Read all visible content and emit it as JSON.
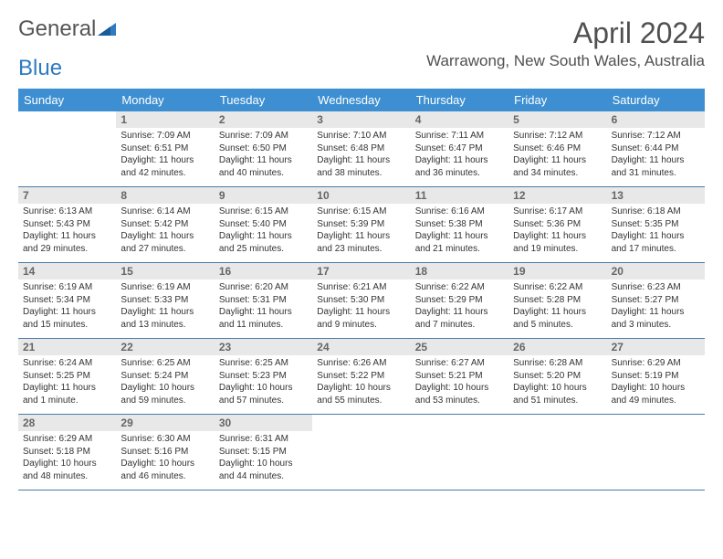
{
  "logo": {
    "text_gray": "General",
    "text_blue": "Blue"
  },
  "title": "April 2024",
  "location": "Warrawong, New South Wales, Australia",
  "colors": {
    "header_bg": "#3d8fd1",
    "header_text": "#ffffff",
    "daynum_bg": "#e8e8e8",
    "daynum_text": "#666666",
    "body_text": "#333333",
    "week_border": "#4a7ba8",
    "title_color": "#505050"
  },
  "day_headers": [
    "Sunday",
    "Monday",
    "Tuesday",
    "Wednesday",
    "Thursday",
    "Friday",
    "Saturday"
  ],
  "weeks": [
    [
      null,
      {
        "d": "1",
        "sr": "7:09 AM",
        "ss": "6:51 PM",
        "dl": "11 hours and 42 minutes."
      },
      {
        "d": "2",
        "sr": "7:09 AM",
        "ss": "6:50 PM",
        "dl": "11 hours and 40 minutes."
      },
      {
        "d": "3",
        "sr": "7:10 AM",
        "ss": "6:48 PM",
        "dl": "11 hours and 38 minutes."
      },
      {
        "d": "4",
        "sr": "7:11 AM",
        "ss": "6:47 PM",
        "dl": "11 hours and 36 minutes."
      },
      {
        "d": "5",
        "sr": "7:12 AM",
        "ss": "6:46 PM",
        "dl": "11 hours and 34 minutes."
      },
      {
        "d": "6",
        "sr": "7:12 AM",
        "ss": "6:44 PM",
        "dl": "11 hours and 31 minutes."
      }
    ],
    [
      {
        "d": "7",
        "sr": "6:13 AM",
        "ss": "5:43 PM",
        "dl": "11 hours and 29 minutes."
      },
      {
        "d": "8",
        "sr": "6:14 AM",
        "ss": "5:42 PM",
        "dl": "11 hours and 27 minutes."
      },
      {
        "d": "9",
        "sr": "6:15 AM",
        "ss": "5:40 PM",
        "dl": "11 hours and 25 minutes."
      },
      {
        "d": "10",
        "sr": "6:15 AM",
        "ss": "5:39 PM",
        "dl": "11 hours and 23 minutes."
      },
      {
        "d": "11",
        "sr": "6:16 AM",
        "ss": "5:38 PM",
        "dl": "11 hours and 21 minutes."
      },
      {
        "d": "12",
        "sr": "6:17 AM",
        "ss": "5:36 PM",
        "dl": "11 hours and 19 minutes."
      },
      {
        "d": "13",
        "sr": "6:18 AM",
        "ss": "5:35 PM",
        "dl": "11 hours and 17 minutes."
      }
    ],
    [
      {
        "d": "14",
        "sr": "6:19 AM",
        "ss": "5:34 PM",
        "dl": "11 hours and 15 minutes."
      },
      {
        "d": "15",
        "sr": "6:19 AM",
        "ss": "5:33 PM",
        "dl": "11 hours and 13 minutes."
      },
      {
        "d": "16",
        "sr": "6:20 AM",
        "ss": "5:31 PM",
        "dl": "11 hours and 11 minutes."
      },
      {
        "d": "17",
        "sr": "6:21 AM",
        "ss": "5:30 PM",
        "dl": "11 hours and 9 minutes."
      },
      {
        "d": "18",
        "sr": "6:22 AM",
        "ss": "5:29 PM",
        "dl": "11 hours and 7 minutes."
      },
      {
        "d": "19",
        "sr": "6:22 AM",
        "ss": "5:28 PM",
        "dl": "11 hours and 5 minutes."
      },
      {
        "d": "20",
        "sr": "6:23 AM",
        "ss": "5:27 PM",
        "dl": "11 hours and 3 minutes."
      }
    ],
    [
      {
        "d": "21",
        "sr": "6:24 AM",
        "ss": "5:25 PM",
        "dl": "11 hours and 1 minute."
      },
      {
        "d": "22",
        "sr": "6:25 AM",
        "ss": "5:24 PM",
        "dl": "10 hours and 59 minutes."
      },
      {
        "d": "23",
        "sr": "6:25 AM",
        "ss": "5:23 PM",
        "dl": "10 hours and 57 minutes."
      },
      {
        "d": "24",
        "sr": "6:26 AM",
        "ss": "5:22 PM",
        "dl": "10 hours and 55 minutes."
      },
      {
        "d": "25",
        "sr": "6:27 AM",
        "ss": "5:21 PM",
        "dl": "10 hours and 53 minutes."
      },
      {
        "d": "26",
        "sr": "6:28 AM",
        "ss": "5:20 PM",
        "dl": "10 hours and 51 minutes."
      },
      {
        "d": "27",
        "sr": "6:29 AM",
        "ss": "5:19 PM",
        "dl": "10 hours and 49 minutes."
      }
    ],
    [
      {
        "d": "28",
        "sr": "6:29 AM",
        "ss": "5:18 PM",
        "dl": "10 hours and 48 minutes."
      },
      {
        "d": "29",
        "sr": "6:30 AM",
        "ss": "5:16 PM",
        "dl": "10 hours and 46 minutes."
      },
      {
        "d": "30",
        "sr": "6:31 AM",
        "ss": "5:15 PM",
        "dl": "10 hours and 44 minutes."
      },
      null,
      null,
      null,
      null
    ]
  ],
  "labels": {
    "sunrise": "Sunrise:",
    "sunset": "Sunset:",
    "daylight": "Daylight:"
  }
}
